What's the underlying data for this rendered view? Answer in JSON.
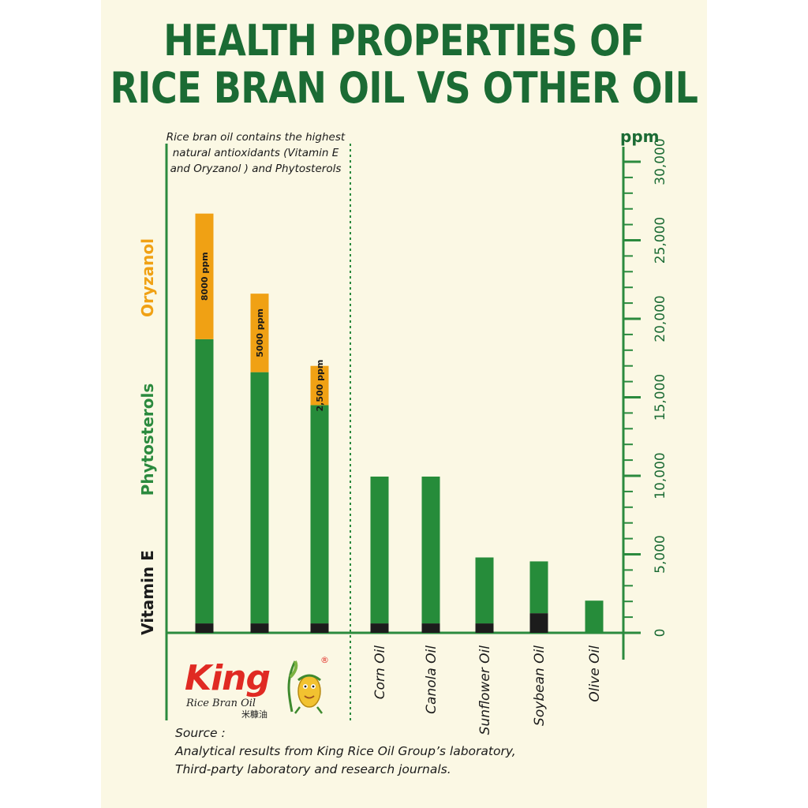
{
  "title": {
    "line1": "HEALTH PROPERTIES OF",
    "line2": "RICE BRAN OIL VS OTHER OIL"
  },
  "note": "Rice bran oil contains the highest natural antioxidants (Vitamin E and Oryzanol ) and Phytosterols",
  "source": {
    "line1": "Source :",
    "line2": "Analytical results from King Rice Oil Group’s laboratory,",
    "line3": "Third-party laboratory and research journals."
  },
  "logo": {
    "word": "King",
    "sub": "Rice Bran Oil",
    "chinese": "米糠油",
    "registered": "®"
  },
  "chart_data": {
    "type": "bar",
    "stacked": true,
    "ylabel": "ppm",
    "ylim": [
      0,
      30000
    ],
    "yticks": [
      0,
      5000,
      10000,
      15000,
      20000,
      25000,
      30000
    ],
    "ytick_labels": [
      "0",
      "5,000",
      "10,000",
      "15,000",
      "20,000",
      "25,000",
      "30,000"
    ],
    "categories": [
      "",
      "",
      "",
      "Corn Oil",
      "Canola Oil",
      "Sunflower Oil",
      "Soybean Oil",
      "Olive Oil"
    ],
    "series": [
      {
        "name": "Vitamin E",
        "color": "#1c1c1c",
        "values": [
          600,
          600,
          600,
          600,
          600,
          600,
          1250,
          0
        ]
      },
      {
        "name": "Phytosterols",
        "color": "#268c3a",
        "values": [
          18100,
          16000,
          13900,
          9350,
          9350,
          4200,
          3300,
          2050
        ]
      },
      {
        "name": "Oryzanol",
        "color": "#f5a317",
        "values": [
          8000,
          5000,
          2500,
          0,
          0,
          0,
          0,
          0
        ]
      }
    ],
    "bar_labels": [
      "8000 ppm",
      "5000 ppm",
      "2,500 ppm",
      "",
      "",
      "",
      "",
      ""
    ],
    "legend_placement": "left-vertical",
    "grid": false
  },
  "colors": {
    "green": "#1b6b34",
    "axis_green": "#2b8a3e",
    "orange": "#f0a114",
    "black": "#1c1c1c",
    "background": "#fbf8e4"
  }
}
